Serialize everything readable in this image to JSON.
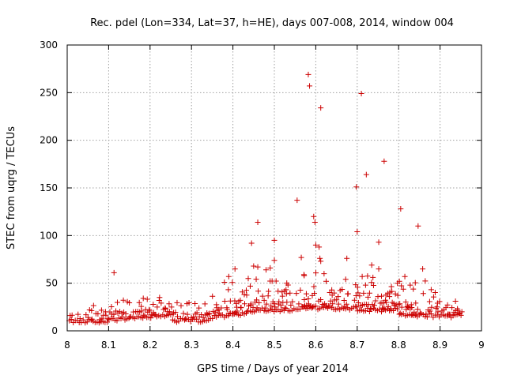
{
  "chart_data": {
    "type": "scatter",
    "title": "Rec. pdel (Lon=334, Lat=37, h=HE), days 007-008, 2014, window 004",
    "xlabel": "GPS time / Days of year 2014",
    "ylabel": "STEC from uqrg / TECUs",
    "xlim": [
      8.0,
      9.0
    ],
    "ylim": [
      0,
      300
    ],
    "x_ticks": [
      "8",
      "8.1",
      "8.2",
      "8.3",
      "8.4",
      "8.5",
      "8.6",
      "8.7",
      "8.8",
      "8.9",
      "9"
    ],
    "y_ticks": [
      "0",
      "50",
      "100",
      "150",
      "200",
      "250",
      "300"
    ],
    "grid": true,
    "marker": "plus",
    "series_color": "#cc0000",
    "outliers": [
      {
        "x": 8.113,
        "y": 61
      },
      {
        "x": 8.223,
        "y": 35
      },
      {
        "x": 8.39,
        "y": 57
      },
      {
        "x": 8.405,
        "y": 65
      },
      {
        "x": 8.445,
        "y": 92
      },
      {
        "x": 8.45,
        "y": 68
      },
      {
        "x": 8.46,
        "y": 67
      },
      {
        "x": 8.46,
        "y": 114
      },
      {
        "x": 8.48,
        "y": 64
      },
      {
        "x": 8.49,
        "y": 66
      },
      {
        "x": 8.5,
        "y": 95
      },
      {
        "x": 8.5,
        "y": 74
      },
      {
        "x": 8.53,
        "y": 50
      },
      {
        "x": 8.555,
        "y": 137
      },
      {
        "x": 8.565,
        "y": 77
      },
      {
        "x": 8.572,
        "y": 58
      },
      {
        "x": 8.582,
        "y": 269
      },
      {
        "x": 8.585,
        "y": 257
      },
      {
        "x": 8.595,
        "y": 120
      },
      {
        "x": 8.598,
        "y": 114
      },
      {
        "x": 8.6,
        "y": 90
      },
      {
        "x": 8.608,
        "y": 88
      },
      {
        "x": 8.612,
        "y": 234
      },
      {
        "x": 8.61,
        "y": 76
      },
      {
        "x": 8.612,
        "y": 73
      },
      {
        "x": 8.62,
        "y": 60
      },
      {
        "x": 8.625,
        "y": 52
      },
      {
        "x": 8.675,
        "y": 76
      },
      {
        "x": 8.698,
        "y": 151
      },
      {
        "x": 8.7,
        "y": 104
      },
      {
        "x": 8.71,
        "y": 249
      },
      {
        "x": 8.712,
        "y": 57
      },
      {
        "x": 8.722,
        "y": 164
      },
      {
        "x": 8.735,
        "y": 69
      },
      {
        "x": 8.738,
        "y": 56
      },
      {
        "x": 8.752,
        "y": 93
      },
      {
        "x": 8.752,
        "y": 65
      },
      {
        "x": 8.765,
        "y": 178
      },
      {
        "x": 8.805,
        "y": 128
      },
      {
        "x": 8.815,
        "y": 57
      },
      {
        "x": 8.828,
        "y": 48
      },
      {
        "x": 8.847,
        "y": 110
      },
      {
        "x": 8.858,
        "y": 65
      }
    ]
  }
}
